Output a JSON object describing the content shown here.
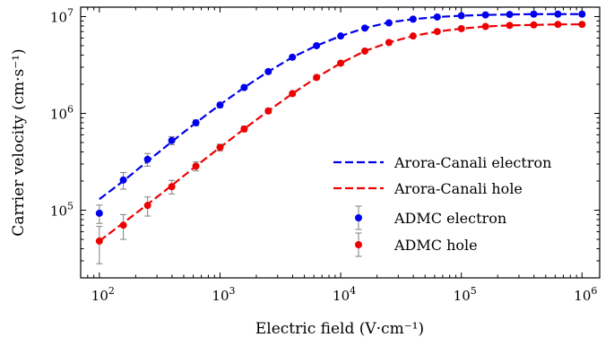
{
  "chart_data": {
    "type": "line",
    "x_scale": "log",
    "y_scale": "log",
    "xlim": [
      70,
      1400000
    ],
    "ylim": [
      20000,
      12500000
    ],
    "xlabel": "Electric field (V·cm⁻¹)",
    "ylabel": "Carrier velocity (cm·s⁻¹)",
    "x_ticks": [
      {
        "value": 100,
        "base": "10",
        "exp": "2"
      },
      {
        "value": 1000,
        "base": "10",
        "exp": "3"
      },
      {
        "value": 10000,
        "base": "10",
        "exp": "4"
      },
      {
        "value": 100000,
        "base": "10",
        "exp": "5"
      },
      {
        "value": 1000000,
        "base": "10",
        "exp": "6"
      }
    ],
    "y_ticks": [
      {
        "value": 100000,
        "base": "10",
        "exp": "5"
      },
      {
        "value": 1000000,
        "base": "10",
        "exp": "6"
      },
      {
        "value": 10000000,
        "base": "10",
        "exp": "7"
      }
    ],
    "grid": false,
    "legend_position": "bottom-right",
    "series": [
      {
        "name": "Arora-Canali electron",
        "kind": "line",
        "color": "#0000ee",
        "x": [
          100,
          158,
          251,
          398,
          631,
          1000,
          1585,
          2512,
          3981,
          6310,
          10000,
          15849,
          25119,
          39811,
          63096,
          100000,
          158489,
          251189,
          398107,
          630957,
          1000000
        ],
        "y": [
          130000,
          200000,
          320000,
          510000,
          800000,
          1230000,
          1850000,
          2700000,
          3800000,
          5000000,
          6300000,
          7600000,
          8700000,
          9400000,
          9900000,
          10200000,
          10400000,
          10500000,
          10600000,
          10600000,
          10600000
        ]
      },
      {
        "name": "Arora-Canali hole",
        "kind": "line",
        "color": "#ee0000",
        "x": [
          100,
          158,
          251,
          398,
          631,
          1000,
          1585,
          2512,
          3981,
          6310,
          10000,
          15849,
          25119,
          39811,
          63096,
          100000,
          158489,
          251189,
          398107,
          630957,
          1000000
        ],
        "y": [
          48000,
          74000,
          115000,
          180000,
          285000,
          445000,
          690000,
          1060000,
          1600000,
          2350000,
          3300000,
          4400000,
          5400000,
          6300000,
          7000000,
          7500000,
          7900000,
          8100000,
          8200000,
          8300000,
          8300000
        ]
      },
      {
        "name": "ADMC electron",
        "kind": "points",
        "color": "#0000ee",
        "x": [
          100,
          158,
          251,
          398,
          631,
          1000,
          1585,
          2512,
          3981,
          6310,
          10000,
          15849,
          25119,
          39811,
          63096,
          100000,
          158489,
          251189,
          398107,
          630957,
          1000000
        ],
        "y": [
          93000,
          205000,
          335000,
          525000,
          800000,
          1220000,
          1850000,
          2700000,
          3800000,
          5000000,
          6300000,
          7600000,
          8600000,
          9400000,
          9900000,
          10200000,
          10400000,
          10500000,
          10600000,
          10600000,
          10600000
        ],
        "err": [
          20000,
          40000,
          50000,
          50000,
          55000,
          70000,
          90000,
          110000,
          130000,
          150000,
          180000,
          200000,
          220000,
          230000,
          230000,
          230000,
          230000,
          230000,
          230000,
          230000,
          230000
        ]
      },
      {
        "name": "ADMC hole",
        "kind": "points",
        "color": "#ee0000",
        "x": [
          100,
          158,
          251,
          398,
          631,
          1000,
          1585,
          2512,
          3981,
          6310,
          10000,
          15849,
          25119,
          39811,
          63096,
          100000,
          158489,
          251189,
          398107,
          630957,
          1000000
        ],
        "y": [
          48000,
          70000,
          112000,
          175000,
          285000,
          445000,
          690000,
          1060000,
          1600000,
          2350000,
          3300000,
          4400000,
          5400000,
          6300000,
          7000000,
          7500000,
          7900000,
          8100000,
          8200000,
          8300000,
          8300000
        ],
        "err": [
          20000,
          20000,
          25000,
          28000,
          30000,
          35000,
          45000,
          60000,
          80000,
          100000,
          120000,
          140000,
          160000,
          170000,
          180000,
          180000,
          180000,
          180000,
          180000,
          180000,
          180000
        ]
      }
    ]
  }
}
